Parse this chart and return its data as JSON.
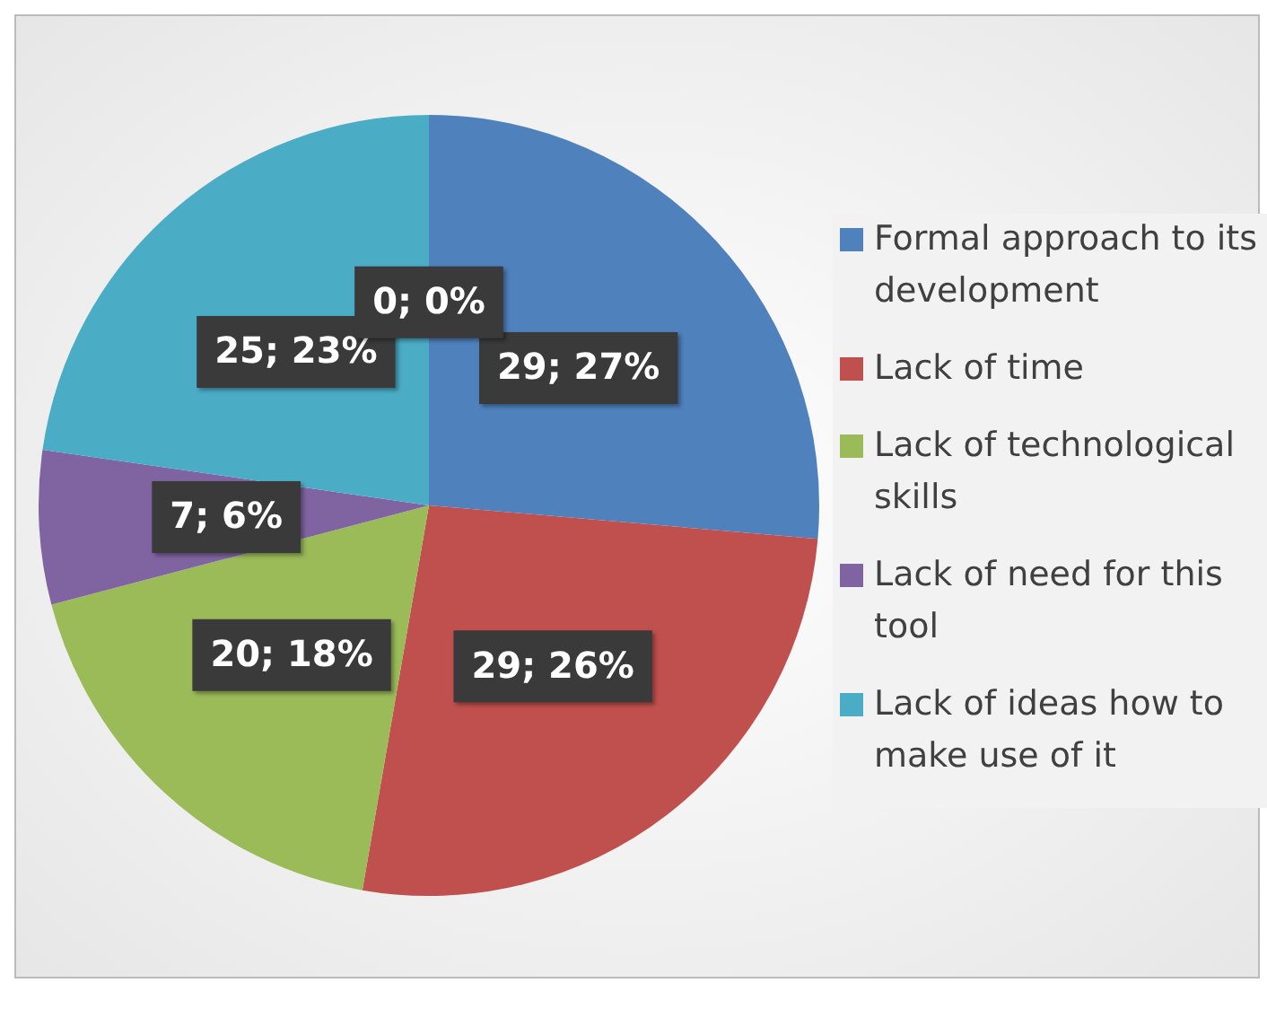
{
  "chart_data": {
    "type": "pie",
    "categories": [
      "Formal approach to its development",
      "Lack of time",
      "Lack of technological skills",
      "Lack of need for this tool",
      "Lack of ideas how to make use of it",
      null
    ],
    "values": [
      29,
      29,
      20,
      7,
      25,
      0
    ],
    "colors": [
      "#4f81bd",
      "#c0504d",
      "#9bbb59",
      "#8064a2",
      "#4bacc6",
      "#f79646"
    ],
    "value_labels": [
      "29; 27%",
      "29; 26%",
      "20; 18%",
      "7; 6%",
      "25; 23%",
      "0; 0%"
    ],
    "legend": "right"
  }
}
